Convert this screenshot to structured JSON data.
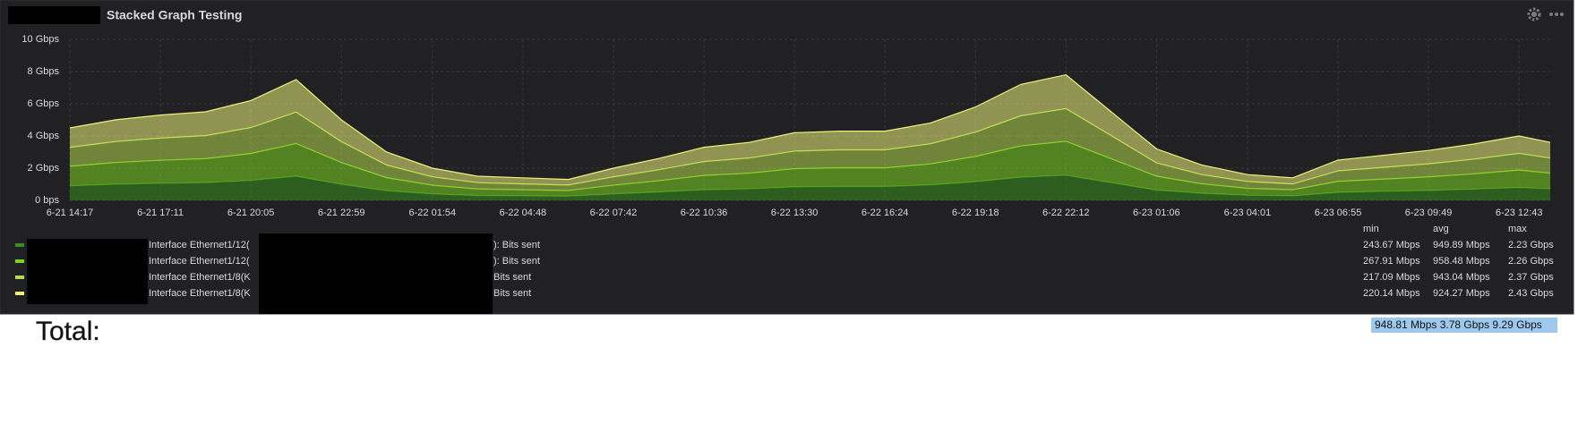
{
  "chart_data": {
    "type": "stacked-area",
    "title": "Stacked Graph Testing",
    "x": [
      "6-21 14:17",
      "6-21 15:44",
      "6-21 17:11",
      "6-21 18:38",
      "6-21 20:05",
      "6-21 21:32",
      "6-21 22:59",
      "6-22 00:26",
      "6-22 01:54",
      "6-22 03:21",
      "6-22 04:48",
      "6-22 06:15",
      "6-22 07:42",
      "6-22 09:09",
      "6-22 10:36",
      "6-22 12:03",
      "6-22 13:30",
      "6-22 14:57",
      "6-22 16:24",
      "6-22 17:51",
      "6-22 19:18",
      "6-22 20:45",
      "6-22 22:12",
      "6-22 23:39",
      "6-23 01:06",
      "6-23 02:33",
      "6-23 04:01",
      "6-23 05:28",
      "6-23 06:55",
      "6-23 08:22",
      "6-23 09:49",
      "6-23 11:16",
      "6-23 12:43",
      "6-23 13:43"
    ],
    "xlim": [
      "6-21 14:17",
      "6-23 13:43"
    ],
    "xticks": [
      "6-21 14:17",
      "6-21 17:11",
      "6-21 20:05",
      "6-21 22:59",
      "6-22 01:54",
      "6-22 04:48",
      "6-22 07:42",
      "6-22 10:36",
      "6-22 13:30",
      "6-22 16:24",
      "6-22 19:18",
      "6-22 22:12",
      "6-23 01:06",
      "6-23 04:01",
      "6-23 06:55",
      "6-23 09:49",
      "6-23 12:43"
    ],
    "ylim": [
      0,
      10
    ],
    "yticks": [
      {
        "value": 0,
        "label": "0 bps"
      },
      {
        "value": 2,
        "label": "2 Gbps"
      },
      {
        "value": 4,
        "label": "4 Gbps"
      },
      {
        "value": 6,
        "label": "6 Gbps"
      },
      {
        "value": 8,
        "label": "8 Gbps"
      },
      {
        "value": 10,
        "label": "10 Gbps"
      }
    ],
    "grid": true,
    "stacked": true,
    "stat_headers": [
      "min",
      "avg",
      "max"
    ],
    "series": [
      {
        "name": "Interface Ethernet1/12(",
        "name_end": "): Bits sent",
        "color": "#3a8f1e",
        "stats": [
          "243.67 Mbps",
          "949.89 Mbps",
          "2.23 Gbps"
        ],
        "values": [
          0.9,
          1.0,
          1.06,
          1.1,
          1.24,
          1.5,
          1.0,
          0.6,
          0.4,
          0.3,
          0.28,
          0.26,
          0.4,
          0.52,
          0.66,
          0.72,
          0.84,
          0.86,
          0.86,
          0.96,
          1.16,
          1.44,
          1.56,
          1.1,
          0.64,
          0.44,
          0.32,
          0.28,
          0.5,
          0.56,
          0.62,
          0.7,
          0.8,
          0.72
        ]
      },
      {
        "name": "Interface Ethernet1/12(",
        "name_end": "): Bits sent",
        "color": "#7ed321",
        "stats": [
          "267.91 Mbps",
          "958.48 Mbps",
          "2.26 Gbps"
        ],
        "values": [
          1.22,
          1.35,
          1.43,
          1.49,
          1.67,
          2.03,
          1.35,
          0.81,
          0.54,
          0.41,
          0.38,
          0.35,
          0.54,
          0.7,
          0.89,
          0.97,
          1.13,
          1.16,
          1.16,
          1.3,
          1.57,
          1.94,
          2.11,
          1.49,
          0.86,
          0.59,
          0.43,
          0.38,
          0.68,
          0.76,
          0.84,
          0.95,
          1.08,
          0.97
        ]
      },
      {
        "name": "Interface Ethernet1/8(K",
        "name_end": " Bits sent",
        "color": "#b5d94c",
        "stats": [
          "217.09 Mbps",
          "943.04 Mbps",
          "2.37 Gbps"
        ],
        "values": [
          1.17,
          1.3,
          1.38,
          1.43,
          1.61,
          1.95,
          1.3,
          0.78,
          0.52,
          0.39,
          0.36,
          0.34,
          0.52,
          0.68,
          0.86,
          0.94,
          1.09,
          1.12,
          1.12,
          1.25,
          1.51,
          1.87,
          2.03,
          1.43,
          0.83,
          0.57,
          0.42,
          0.36,
          0.65,
          0.73,
          0.81,
          0.91,
          1.04,
          0.94
        ]
      },
      {
        "name": "Interface Ethernet1/8(K",
        "name_end": " Bits sent",
        "color": "#eef27a",
        "stats": [
          "220.14 Mbps",
          "924.27 Mbps",
          "2.43 Gbps"
        ],
        "values": [
          1.21,
          1.35,
          1.43,
          1.48,
          1.68,
          2.02,
          1.35,
          0.81,
          0.54,
          0.4,
          0.38,
          0.35,
          0.54,
          0.7,
          0.89,
          0.97,
          1.14,
          1.16,
          1.16,
          1.29,
          1.56,
          1.95,
          2.1,
          1.48,
          0.87,
          0.6,
          0.43,
          0.38,
          0.67,
          0.75,
          0.83,
          0.94,
          1.08,
          0.97
        ]
      }
    ],
    "total_label": "Total:",
    "total_stats": "948.81 Mbps 3.78 Gbps 9.29 Gbps"
  }
}
